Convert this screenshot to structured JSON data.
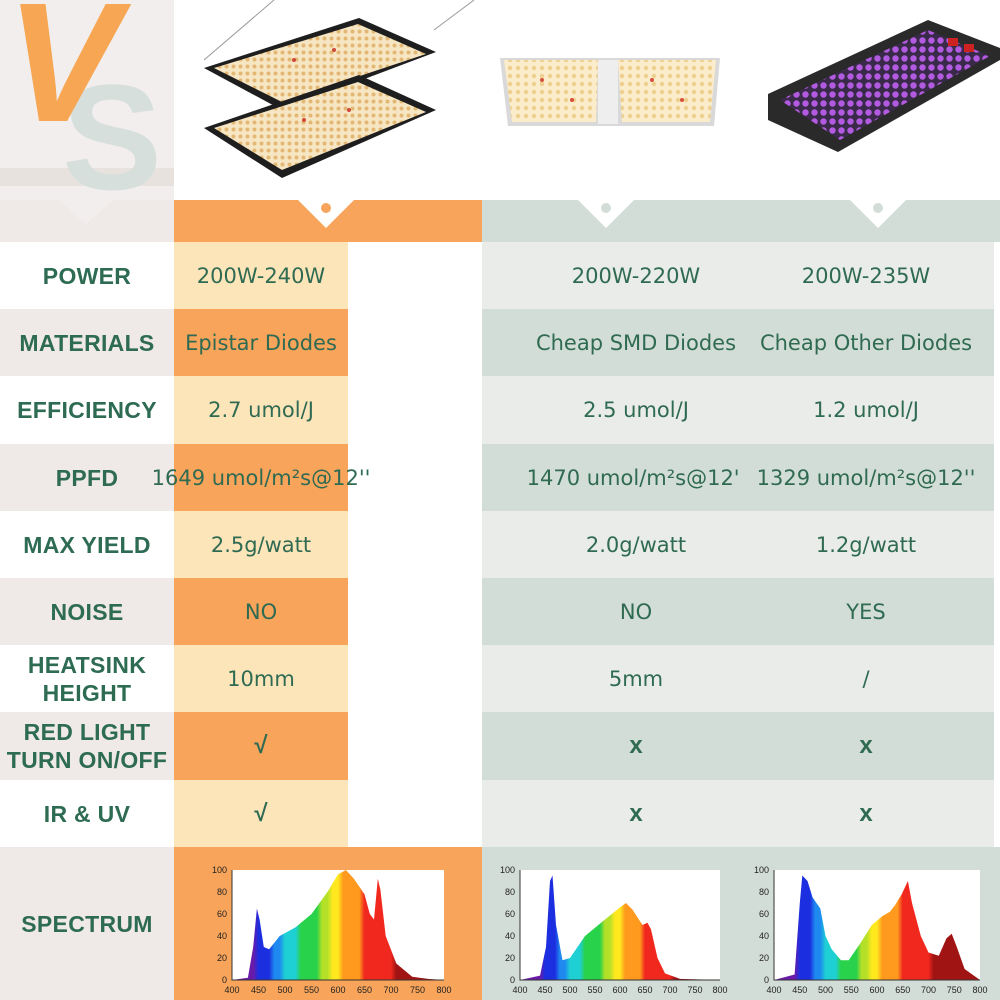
{
  "logo": {
    "letter_v": "V",
    "letter_s": "S"
  },
  "products": [
    {
      "key": "p1",
      "image": "quantum-board-double-icon"
    },
    {
      "key": "p2",
      "image": "quantum-board-single-icon"
    },
    {
      "key": "p3",
      "image": "blurple-led-panel-icon"
    }
  ],
  "rows": [
    {
      "label": "POWER",
      "values": [
        "200W-240W",
        "200W-220W",
        "200W-235W"
      ]
    },
    {
      "label": "MATERIALS",
      "values": [
        "Epistar Diodes",
        "Cheap SMD Diodes",
        "Cheap Other Diodes"
      ]
    },
    {
      "label": "EFFICIENCY",
      "values": [
        "2.7 umol/J",
        "2.5 umol/J",
        "1.2 umol/J"
      ]
    },
    {
      "label": "PPFD",
      "values": [
        "1649 umol/m²s@12''",
        "1470 umol/m²s@12''",
        "1329 umol/m²s@12''"
      ]
    },
    {
      "label": "MAX YIELD",
      "values": [
        "2.5g/watt",
        "2.0g/watt",
        "1.2g/watt"
      ]
    },
    {
      "label": "NOISE",
      "values": [
        "NO",
        "NO",
        "YES"
      ]
    },
    {
      "label": "HEATSINK HEIGHT",
      "values": [
        "10mm",
        "5mm",
        "/"
      ]
    },
    {
      "label": "RED LIGHT TURN ON/OFF",
      "values": [
        "√",
        "x",
        "x"
      ]
    },
    {
      "label": "IR &  UV",
      "values": [
        "√",
        "x",
        "x"
      ]
    }
  ],
  "spectrum": {
    "label": "SPECTRUM",
    "y_ticks": [
      "100",
      "80",
      "60",
      "40",
      "20",
      "0"
    ],
    "x_ticks": [
      "400",
      "450",
      "500",
      "550",
      "600",
      "650",
      "700",
      "750",
      "800"
    ]
  },
  "colors": {
    "accent_orange": "#f8a45a",
    "light_orange": "#fde5ba",
    "gray_light": "#e9ece9",
    "gray_dark": "#d3ddd7",
    "label_bg_light": "#ffffff",
    "label_bg_gray": "#efe9e7",
    "text_green": "#2e6b53"
  }
}
